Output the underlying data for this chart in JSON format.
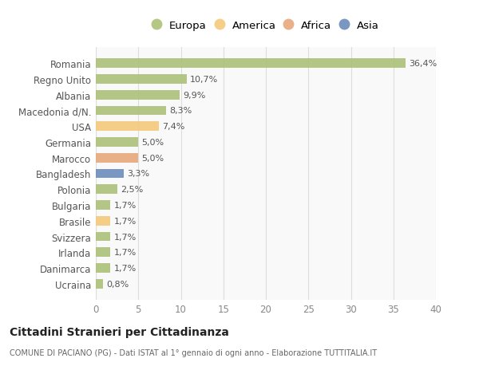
{
  "categories": [
    "Romania",
    "Regno Unito",
    "Albania",
    "Macedonia d/N.",
    "USA",
    "Germania",
    "Marocco",
    "Bangladesh",
    "Polonia",
    "Bulgaria",
    "Brasile",
    "Svizzera",
    "Irlanda",
    "Danimarca",
    "Ucraina"
  ],
  "values": [
    36.4,
    10.7,
    9.9,
    8.3,
    7.4,
    5.0,
    5.0,
    3.3,
    2.5,
    1.7,
    1.7,
    1.7,
    1.7,
    1.7,
    0.8
  ],
  "labels": [
    "36,4%",
    "10,7%",
    "9,9%",
    "8,3%",
    "7,4%",
    "5,0%",
    "5,0%",
    "3,3%",
    "2,5%",
    "1,7%",
    "1,7%",
    "1,7%",
    "1,7%",
    "1,7%",
    "0,8%"
  ],
  "colors": [
    "#adc178",
    "#adc178",
    "#adc178",
    "#adc178",
    "#f4c97a",
    "#adc178",
    "#e8a87c",
    "#6b8cba",
    "#adc178",
    "#adc178",
    "#f4c97a",
    "#adc178",
    "#adc178",
    "#adc178",
    "#adc178"
  ],
  "legend": [
    {
      "label": "Europa",
      "color": "#adc178"
    },
    {
      "label": "America",
      "color": "#f4c97a"
    },
    {
      "label": "Africa",
      "color": "#e8a87c"
    },
    {
      "label": "Asia",
      "color": "#6b8cba"
    }
  ],
  "xlim": [
    0,
    40
  ],
  "xticks": [
    0,
    5,
    10,
    15,
    20,
    25,
    30,
    35,
    40
  ],
  "title": "Cittadini Stranieri per Cittadinanza",
  "subtitle": "COMUNE DI PACIANO (PG) - Dati ISTAT al 1° gennaio di ogni anno - Elaborazione TUTTITALIA.IT",
  "bg_color": "#ffffff",
  "plot_bg_color": "#f9f9f9",
  "grid_color": "#dddddd",
  "bar_height": 0.6
}
